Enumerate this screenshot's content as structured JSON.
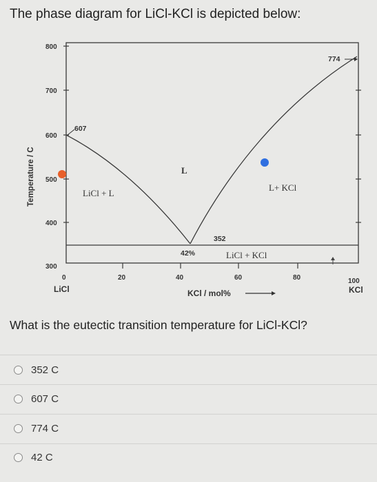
{
  "question": {
    "title": "The phase diagram for LiCl-KCl is depicted below:",
    "prompt": "What is the eutectic transition temperature for LiCl-KCl?"
  },
  "diagram": {
    "y_axis_label": "Temperature / C",
    "x_axis_label": "KCl / mol%",
    "y_ticks": [
      "800",
      "700",
      "600",
      "500",
      "400",
      "300"
    ],
    "x_ticks": [
      "0",
      "20",
      "40",
      "60",
      "80",
      "100"
    ],
    "x_left_component": "LiCl",
    "x_right_component": "KCl",
    "regions": {
      "liquid": "L",
      "licl_liquid": "LiCl + L",
      "liquid_kcl": "L+ KCl",
      "solid": "LiCl + KCl"
    },
    "annotations": {
      "licl_melting": "607",
      "kcl_melting": "774",
      "eutectic_temp": "352",
      "eutectic_comp": "42%"
    },
    "colors": {
      "orange_dot": "#e8602a",
      "blue_dot": "#2f6fe0",
      "lines": "#3a3a3a"
    }
  },
  "options": [
    {
      "label": "352 C"
    },
    {
      "label": "607 C"
    },
    {
      "label": "774 C"
    },
    {
      "label": "42 C"
    }
  ]
}
